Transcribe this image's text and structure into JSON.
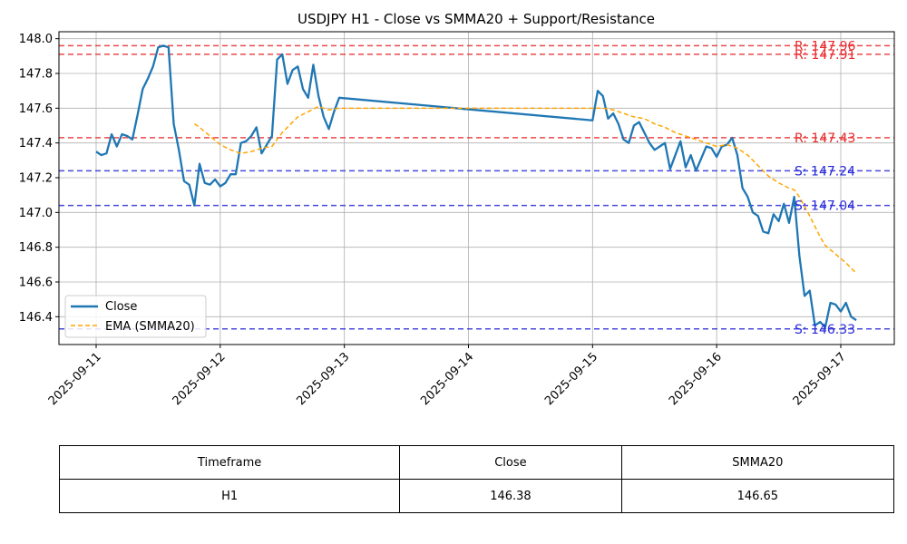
{
  "chart_data": {
    "type": "line",
    "title": "USDJPY H1 - Close vs SMMA20 + Support/Resistance",
    "x_tick_labels": [
      "2025-09-11",
      "2025-09-12",
      "2025-09-13",
      "2025-09-14",
      "2025-09-15",
      "2025-09-16",
      "2025-09-17"
    ],
    "y_tick_labels": [
      "146.4",
      "146.6",
      "146.8",
      "147.0",
      "147.2",
      "147.4",
      "147.6",
      "147.8",
      "148.0"
    ],
    "ylim": [
      146.24,
      148.04
    ],
    "grid": true,
    "legend_position": "lower-left",
    "series": [
      {
        "name": "Close",
        "color": "#1f77b4",
        "style": "solid",
        "points": [
          [
            "2025-09-11 00:00",
            147.35
          ],
          [
            "2025-09-11 01:00",
            147.33
          ],
          [
            "2025-09-11 02:00",
            147.34
          ],
          [
            "2025-09-11 03:00",
            147.45
          ],
          [
            "2025-09-11 04:00",
            147.38
          ],
          [
            "2025-09-11 05:00",
            147.45
          ],
          [
            "2025-09-11 06:00",
            147.44
          ],
          [
            "2025-09-11 07:00",
            147.42
          ],
          [
            "2025-09-11 08:00",
            147.56
          ],
          [
            "2025-09-11 09:00",
            147.71
          ],
          [
            "2025-09-11 10:00",
            147.77
          ],
          [
            "2025-09-11 11:00",
            147.84
          ],
          [
            "2025-09-11 12:00",
            147.95
          ],
          [
            "2025-09-11 13:00",
            147.96
          ],
          [
            "2025-09-11 14:00",
            147.95
          ],
          [
            "2025-09-11 15:00",
            147.51
          ],
          [
            "2025-09-11 16:00",
            147.36
          ],
          [
            "2025-09-11 17:00",
            147.18
          ],
          [
            "2025-09-11 18:00",
            147.16
          ],
          [
            "2025-09-11 19:00",
            147.04
          ],
          [
            "2025-09-11 20:00",
            147.28
          ],
          [
            "2025-09-11 21:00",
            147.17
          ],
          [
            "2025-09-11 22:00",
            147.16
          ],
          [
            "2025-09-11 23:00",
            147.19
          ],
          [
            "2025-09-12 00:00",
            147.15
          ],
          [
            "2025-09-12 01:00",
            147.17
          ],
          [
            "2025-09-12 02:00",
            147.22
          ],
          [
            "2025-09-12 03:00",
            147.22
          ],
          [
            "2025-09-12 04:00",
            147.4
          ],
          [
            "2025-09-12 05:00",
            147.41
          ],
          [
            "2025-09-12 06:00",
            147.44
          ],
          [
            "2025-09-12 07:00",
            147.49
          ],
          [
            "2025-09-12 08:00",
            147.34
          ],
          [
            "2025-09-12 09:00",
            147.39
          ],
          [
            "2025-09-12 10:00",
            147.44
          ],
          [
            "2025-09-12 11:00",
            147.88
          ],
          [
            "2025-09-12 12:00",
            147.91
          ],
          [
            "2025-09-12 13:00",
            147.74
          ],
          [
            "2025-09-12 14:00",
            147.82
          ],
          [
            "2025-09-12 15:00",
            147.84
          ],
          [
            "2025-09-12 16:00",
            147.71
          ],
          [
            "2025-09-12 17:00",
            147.66
          ],
          [
            "2025-09-12 18:00",
            147.85
          ],
          [
            "2025-09-12 19:00",
            147.67
          ],
          [
            "2025-09-12 20:00",
            147.55
          ],
          [
            "2025-09-12 21:00",
            147.48
          ],
          [
            "2025-09-12 22:00",
            147.58
          ],
          [
            "2025-09-12 23:00",
            147.66
          ],
          [
            "2025-09-15 00:00",
            147.53
          ],
          [
            "2025-09-15 01:00",
            147.7
          ],
          [
            "2025-09-15 02:00",
            147.67
          ],
          [
            "2025-09-15 03:00",
            147.54
          ],
          [
            "2025-09-15 04:00",
            147.57
          ],
          [
            "2025-09-15 05:00",
            147.51
          ],
          [
            "2025-09-15 06:00",
            147.42
          ],
          [
            "2025-09-15 07:00",
            147.4
          ],
          [
            "2025-09-15 08:00",
            147.5
          ],
          [
            "2025-09-15 09:00",
            147.52
          ],
          [
            "2025-09-15 10:00",
            147.46
          ],
          [
            "2025-09-15 11:00",
            147.4
          ],
          [
            "2025-09-15 12:00",
            147.36
          ],
          [
            "2025-09-15 13:00",
            147.38
          ],
          [
            "2025-09-15 14:00",
            147.4
          ],
          [
            "2025-09-15 15:00",
            147.25
          ],
          [
            "2025-09-15 16:00",
            147.33
          ],
          [
            "2025-09-15 17:00",
            147.41
          ],
          [
            "2025-09-15 18:00",
            147.26
          ],
          [
            "2025-09-15 19:00",
            147.33
          ],
          [
            "2025-09-15 20:00",
            147.24
          ],
          [
            "2025-09-15 21:00",
            147.31
          ],
          [
            "2025-09-15 22:00",
            147.38
          ],
          [
            "2025-09-15 23:00",
            147.37
          ],
          [
            "2025-09-16 00:00",
            147.32
          ],
          [
            "2025-09-16 01:00",
            147.38
          ],
          [
            "2025-09-16 02:00",
            147.39
          ],
          [
            "2025-09-16 03:00",
            147.43
          ],
          [
            "2025-09-16 04:00",
            147.33
          ],
          [
            "2025-09-16 05:00",
            147.14
          ],
          [
            "2025-09-16 06:00",
            147.09
          ],
          [
            "2025-09-16 07:00",
            147.0
          ],
          [
            "2025-09-16 08:00",
            146.98
          ],
          [
            "2025-09-16 09:00",
            146.89
          ],
          [
            "2025-09-16 10:00",
            146.88
          ],
          [
            "2025-09-16 11:00",
            146.99
          ],
          [
            "2025-09-16 12:00",
            146.95
          ],
          [
            "2025-09-16 13:00",
            147.05
          ],
          [
            "2025-09-16 14:00",
            146.94
          ],
          [
            "2025-09-16 15:00",
            147.09
          ],
          [
            "2025-09-16 16:00",
            146.75
          ],
          [
            "2025-09-16 17:00",
            146.52
          ],
          [
            "2025-09-16 18:00",
            146.55
          ],
          [
            "2025-09-16 19:00",
            146.35
          ],
          [
            "2025-09-16 20:00",
            146.37
          ],
          [
            "2025-09-16 21:00",
            146.34
          ],
          [
            "2025-09-16 22:00",
            146.48
          ],
          [
            "2025-09-16 23:00",
            146.47
          ],
          [
            "2025-09-17 00:00",
            146.43
          ],
          [
            "2025-09-17 01:00",
            146.48
          ],
          [
            "2025-09-17 02:00",
            146.4
          ],
          [
            "2025-09-17 03:00",
            146.38
          ]
        ]
      },
      {
        "name": "EMA (SMMA20)",
        "color": "#ffa500",
        "style": "dashed",
        "points": [
          [
            "2025-09-11 19:00",
            147.51
          ],
          [
            "2025-09-11 20:00",
            147.49
          ],
          [
            "2025-09-11 22:00",
            147.44
          ],
          [
            "2025-09-12 00:00",
            147.39
          ],
          [
            "2025-09-12 02:00",
            147.36
          ],
          [
            "2025-09-12 04:00",
            147.34
          ],
          [
            "2025-09-12 06:00",
            147.35
          ],
          [
            "2025-09-12 08:00",
            147.37
          ],
          [
            "2025-09-12 10:00",
            147.38
          ],
          [
            "2025-09-12 12:00",
            147.46
          ],
          [
            "2025-09-12 14:00",
            147.52
          ],
          [
            "2025-09-12 15:00",
            147.55
          ],
          [
            "2025-09-12 17:00",
            147.58
          ],
          [
            "2025-09-12 19:00",
            147.61
          ],
          [
            "2025-09-12 21:00",
            147.59
          ],
          [
            "2025-09-12 23:00",
            147.6
          ],
          [
            "2025-09-15 00:00",
            147.6
          ],
          [
            "2025-09-15 02:00",
            147.6
          ],
          [
            "2025-09-15 04:00",
            147.59
          ],
          [
            "2025-09-15 06:00",
            147.57
          ],
          [
            "2025-09-15 08:00",
            147.55
          ],
          [
            "2025-09-15 10:00",
            147.54
          ],
          [
            "2025-09-15 12:00",
            147.51
          ],
          [
            "2025-09-15 14:00",
            147.49
          ],
          [
            "2025-09-15 16:00",
            147.46
          ],
          [
            "2025-09-15 18:00",
            147.44
          ],
          [
            "2025-09-15 20:00",
            147.42
          ],
          [
            "2025-09-15 22:00",
            147.4
          ],
          [
            "2025-09-16 00:00",
            147.38
          ],
          [
            "2025-09-16 02:00",
            147.39
          ],
          [
            "2025-09-16 04:00",
            147.37
          ],
          [
            "2025-09-16 06:00",
            147.33
          ],
          [
            "2025-09-16 08:00",
            147.27
          ],
          [
            "2025-09-16 10:00",
            147.21
          ],
          [
            "2025-09-16 12:00",
            147.17
          ],
          [
            "2025-09-16 14:00",
            147.14
          ],
          [
            "2025-09-16 15:00",
            147.13
          ],
          [
            "2025-09-16 16:00",
            147.09
          ],
          [
            "2025-09-16 18:00",
            146.98
          ],
          [
            "2025-09-16 20:00",
            146.86
          ],
          [
            "2025-09-16 21:00",
            146.81
          ],
          [
            "2025-09-16 23:00",
            146.76
          ],
          [
            "2025-09-17 01:00",
            146.71
          ],
          [
            "2025-09-17 03:00",
            146.65
          ]
        ]
      }
    ],
    "levels": [
      {
        "kind": "resistance",
        "value": 147.96,
        "label": "R: 147.96",
        "color": "#e8282a"
      },
      {
        "kind": "resistance",
        "value": 147.91,
        "label": "R: 147.91",
        "color": "#e8282a"
      },
      {
        "kind": "resistance",
        "value": 147.43,
        "label": "R: 147.43",
        "color": "#e8282a"
      },
      {
        "kind": "support",
        "value": 147.24,
        "label": "S: 147.24",
        "color": "#2828d8"
      },
      {
        "kind": "support",
        "value": 147.04,
        "label": "S: 147.04",
        "color": "#2828d8"
      },
      {
        "kind": "support",
        "value": 146.33,
        "label": "S: 146.33",
        "color": "#2828d8"
      }
    ]
  },
  "table": {
    "headers": [
      "Timeframe",
      "Close",
      "SMMA20"
    ],
    "row": [
      "H1",
      "146.38",
      "146.65"
    ]
  }
}
